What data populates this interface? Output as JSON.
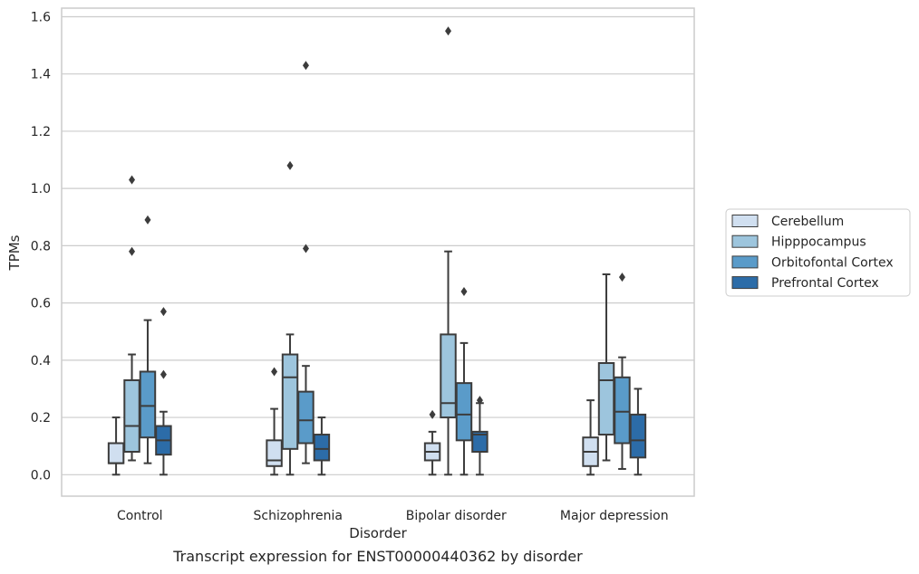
{
  "chart_data": {
    "type": "boxplot",
    "caption": "Transcript expression for ENST00000440362 by disorder",
    "xlabel": "Disorder",
    "ylabel": "TPMs",
    "ylim": [
      -0.075,
      1.63
    ],
    "yticks": [
      0.0,
      0.2,
      0.4,
      0.6,
      0.8,
      1.0,
      1.2,
      1.4,
      1.6
    ],
    "ytick_labels": [
      "0.0",
      "0.2",
      "0.4",
      "0.6",
      "0.8",
      "1.0",
      "1.2",
      "1.4",
      "1.6"
    ],
    "grid": "horizontal",
    "legend_position": "right",
    "categories": [
      "Control",
      "Schizophrenia",
      "Bipolar disorder",
      "Major depression"
    ],
    "series": [
      {
        "name": "Cerebellum",
        "color": "#d0dff0",
        "boxes": [
          {
            "whislo": 0.0,
            "q1": 0.04,
            "med": 0.04,
            "q3": 0.11,
            "whishi": 0.2,
            "fliers": []
          },
          {
            "whislo": 0.0,
            "q1": 0.03,
            "med": 0.05,
            "q3": 0.12,
            "whishi": 0.23,
            "fliers": [
              0.36
            ]
          },
          {
            "whislo": 0.0,
            "q1": 0.05,
            "med": 0.08,
            "q3": 0.11,
            "whishi": 0.15,
            "fliers": [
              0.21
            ]
          },
          {
            "whislo": 0.0,
            "q1": 0.03,
            "med": 0.08,
            "q3": 0.13,
            "whishi": 0.26,
            "fliers": []
          }
        ]
      },
      {
        "name": "Hipppocampus",
        "color": "#9dc5dd",
        "boxes": [
          {
            "whislo": 0.05,
            "q1": 0.08,
            "med": 0.17,
            "q3": 0.33,
            "whishi": 0.42,
            "fliers": [
              0.78,
              1.03
            ]
          },
          {
            "whislo": 0.0,
            "q1": 0.09,
            "med": 0.34,
            "q3": 0.42,
            "whishi": 0.49,
            "fliers": [
              1.08
            ]
          },
          {
            "whislo": 0.0,
            "q1": 0.2,
            "med": 0.25,
            "q3": 0.49,
            "whishi": 0.78,
            "fliers": [
              1.55
            ]
          },
          {
            "whislo": 0.05,
            "q1": 0.14,
            "med": 0.33,
            "q3": 0.39,
            "whishi": 0.7,
            "fliers": []
          }
        ]
      },
      {
        "name": "Orbitofontal Cortex",
        "color": "#5a9bc9",
        "boxes": [
          {
            "whislo": 0.04,
            "q1": 0.13,
            "med": 0.24,
            "q3": 0.36,
            "whishi": 0.54,
            "fliers": [
              0.89
            ]
          },
          {
            "whislo": 0.04,
            "q1": 0.11,
            "med": 0.19,
            "q3": 0.29,
            "whishi": 0.38,
            "fliers": [
              0.79,
              1.43
            ]
          },
          {
            "whislo": 0.0,
            "q1": 0.12,
            "med": 0.21,
            "q3": 0.32,
            "whishi": 0.46,
            "fliers": [
              0.64
            ]
          },
          {
            "whislo": 0.02,
            "q1": 0.11,
            "med": 0.22,
            "q3": 0.34,
            "whishi": 0.41,
            "fliers": [
              0.69
            ]
          }
        ]
      },
      {
        "name": "Prefrontal Cortex",
        "color": "#2c6ca8",
        "boxes": [
          {
            "whislo": 0.0,
            "q1": 0.07,
            "med": 0.12,
            "q3": 0.17,
            "whishi": 0.22,
            "fliers": [
              0.35,
              0.57
            ]
          },
          {
            "whislo": 0.0,
            "q1": 0.05,
            "med": 0.09,
            "q3": 0.14,
            "whishi": 0.2,
            "fliers": []
          },
          {
            "whislo": 0.0,
            "q1": 0.08,
            "med": 0.14,
            "q3": 0.15,
            "whishi": 0.25,
            "fliers": [
              0.26
            ]
          },
          {
            "whislo": 0.0,
            "q1": 0.06,
            "med": 0.12,
            "q3": 0.21,
            "whishi": 0.3,
            "fliers": []
          }
        ]
      }
    ]
  }
}
